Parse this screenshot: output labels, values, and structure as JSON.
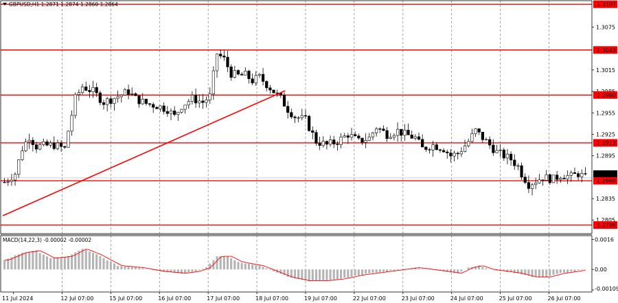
{
  "header": {
    "symbol_line": "GBPUSD,H1  1.2871 1.2874 1.2860 1.2864"
  },
  "macd_header": "MACD(14,22,3) -0.00002 -0.00002",
  "chart_data": [
    {
      "type": "candlestick",
      "title": "GBPUSD,H1  1.2871 1.2874 1.2860 1.2864",
      "ylim": [
        1.2786,
        1.3112
      ],
      "y_ticks": [
        "1.3107",
        "1.3075",
        "1.3043",
        "1.3015",
        "1.2985",
        "1.2980",
        "1.2955",
        "1.2925",
        "1.2913",
        "1.2895",
        "1.2864",
        "1.2860",
        "1.2835",
        "1.2805",
        "1.2798"
      ],
      "x_labels": [
        "11 Jul 2024",
        "12 Jul 07:00",
        "15 Jul 07:00",
        "16 Jul 07:00",
        "17 Jul 07:00",
        "18 Jul 07:00",
        "19 Jul 07:00",
        "22 Jul 07:00",
        "23 Jul 07:00",
        "24 Jul 07:00",
        "25 Jul 07:00",
        "26 Jul 07:00"
      ],
      "levels": [
        1.3107,
        1.3043,
        1.298,
        1.2913,
        1.286,
        1.2798
      ],
      "level_labels": [
        "1.3107",
        "1.3043",
        "1.2980",
        "1.2913",
        "1.2860",
        "1.2798"
      ],
      "current_price": 1.2864,
      "current_price_label": "1.2864",
      "trendline": {
        "from": [
          "11 Jul 2024",
          1.2811
        ],
        "to": [
          "18 Jul 07:00",
          1.2986
        ]
      },
      "path": [
        [
          0,
          1.2858
        ],
        [
          3,
          1.287
        ],
        [
          5,
          1.2905
        ],
        [
          7,
          1.2922
        ],
        [
          9,
          1.2908
        ],
        [
          14,
          1.291
        ],
        [
          17,
          1.2905
        ],
        [
          18,
          1.293
        ],
        [
          20,
          1.2975
        ],
        [
          22,
          1.2992
        ],
        [
          25,
          1.2985
        ],
        [
          28,
          1.297
        ],
        [
          32,
          1.2978
        ],
        [
          35,
          1.2985
        ],
        [
          37,
          1.2975
        ],
        [
          40,
          1.2968
        ],
        [
          43,
          1.2965
        ],
        [
          46,
          1.296
        ],
        [
          48,
          1.295
        ],
        [
          50,
          1.2965
        ],
        [
          53,
          1.2975
        ],
        [
          56,
          1.297
        ],
        [
          58,
          1.2978
        ],
        [
          60,
          1.3038
        ],
        [
          62,
          1.303
        ],
        [
          64,
          1.301
        ],
        [
          66,
          1.3007
        ],
        [
          68,
          1.3008
        ],
        [
          70,
          1.3
        ],
        [
          72,
          1.3005
        ],
        [
          74,
          1.2995
        ],
        [
          76,
          1.2985
        ],
        [
          78,
          1.2975
        ],
        [
          80,
          1.296
        ],
        [
          82,
          1.295
        ],
        [
          85,
          1.2945
        ],
        [
          88,
          1.2915
        ],
        [
          91,
          1.291
        ],
        [
          94,
          1.2915
        ],
        [
          97,
          1.2925
        ],
        [
          100,
          1.2915
        ],
        [
          103,
          1.292
        ],
        [
          105,
          1.2935
        ],
        [
          108,
          1.2925
        ],
        [
          111,
          1.293
        ],
        [
          113,
          1.2925
        ],
        [
          116,
          1.292
        ],
        [
          118,
          1.2905
        ],
        [
          121,
          1.291
        ],
        [
          124,
          1.2905
        ],
        [
          126,
          1.2895
        ],
        [
          128,
          1.2898
        ],
        [
          131,
          1.2915
        ],
        [
          133,
          1.293
        ],
        [
          135,
          1.292
        ],
        [
          137,
          1.291
        ],
        [
          139,
          1.29
        ],
        [
          141,
          1.2895
        ],
        [
          143,
          1.289
        ],
        [
          145,
          1.288
        ],
        [
          146,
          1.287
        ],
        [
          148,
          1.2855
        ],
        [
          150,
          1.286
        ],
        [
          152,
          1.2865
        ],
        [
          155,
          1.2862
        ],
        [
          157,
          1.2868
        ],
        [
          160,
          1.2866
        ],
        [
          162,
          1.287
        ],
        [
          164,
          1.2864
        ]
      ],
      "n_bars": 165
    },
    {
      "type": "bar",
      "title": "MACD(14,22,3) -0.00002 -0.00002",
      "ylim": [
        -0.0012,
        0.0018
      ],
      "y_ticks": [
        "0.0016",
        "0.00",
        "-0.00109"
      ],
      "histogram_path": [
        [
          0,
          0.0005
        ],
        [
          5,
          0.0009
        ],
        [
          9,
          0.001
        ],
        [
          13,
          0.0006
        ],
        [
          18,
          0.0007
        ],
        [
          22,
          0.0011
        ],
        [
          26,
          0.0008
        ],
        [
          32,
          0.0002
        ],
        [
          38,
          0.0001
        ],
        [
          44,
          -0.0001
        ],
        [
          50,
          -0.0002
        ],
        [
          54,
          -0.0001
        ],
        [
          57,
          0.0001
        ],
        [
          60,
          0.0007
        ],
        [
          63,
          0.0007
        ],
        [
          66,
          0.0004
        ],
        [
          72,
          0.0002
        ],
        [
          76,
          -0.0001
        ],
        [
          80,
          -0.0004
        ],
        [
          85,
          -0.0006
        ],
        [
          90,
          -0.0006
        ],
        [
          95,
          -0.0005
        ],
        [
          100,
          -0.0003
        ],
        [
          104,
          -0.0002
        ],
        [
          108,
          -0.0001
        ],
        [
          112,
          0.0
        ],
        [
          116,
          0.0001
        ],
        [
          120,
          0.0
        ],
        [
          124,
          -0.0001
        ],
        [
          128,
          -0.0002
        ],
        [
          131,
          0.0001
        ],
        [
          134,
          0.0002
        ],
        [
          137,
          0.0
        ],
        [
          141,
          -0.0001
        ],
        [
          145,
          -0.0002
        ],
        [
          149,
          -0.0004
        ],
        [
          153,
          -0.0004
        ],
        [
          157,
          -0.0002
        ],
        [
          161,
          -0.0001
        ],
        [
          164,
          0.0
        ]
      ]
    }
  ]
}
